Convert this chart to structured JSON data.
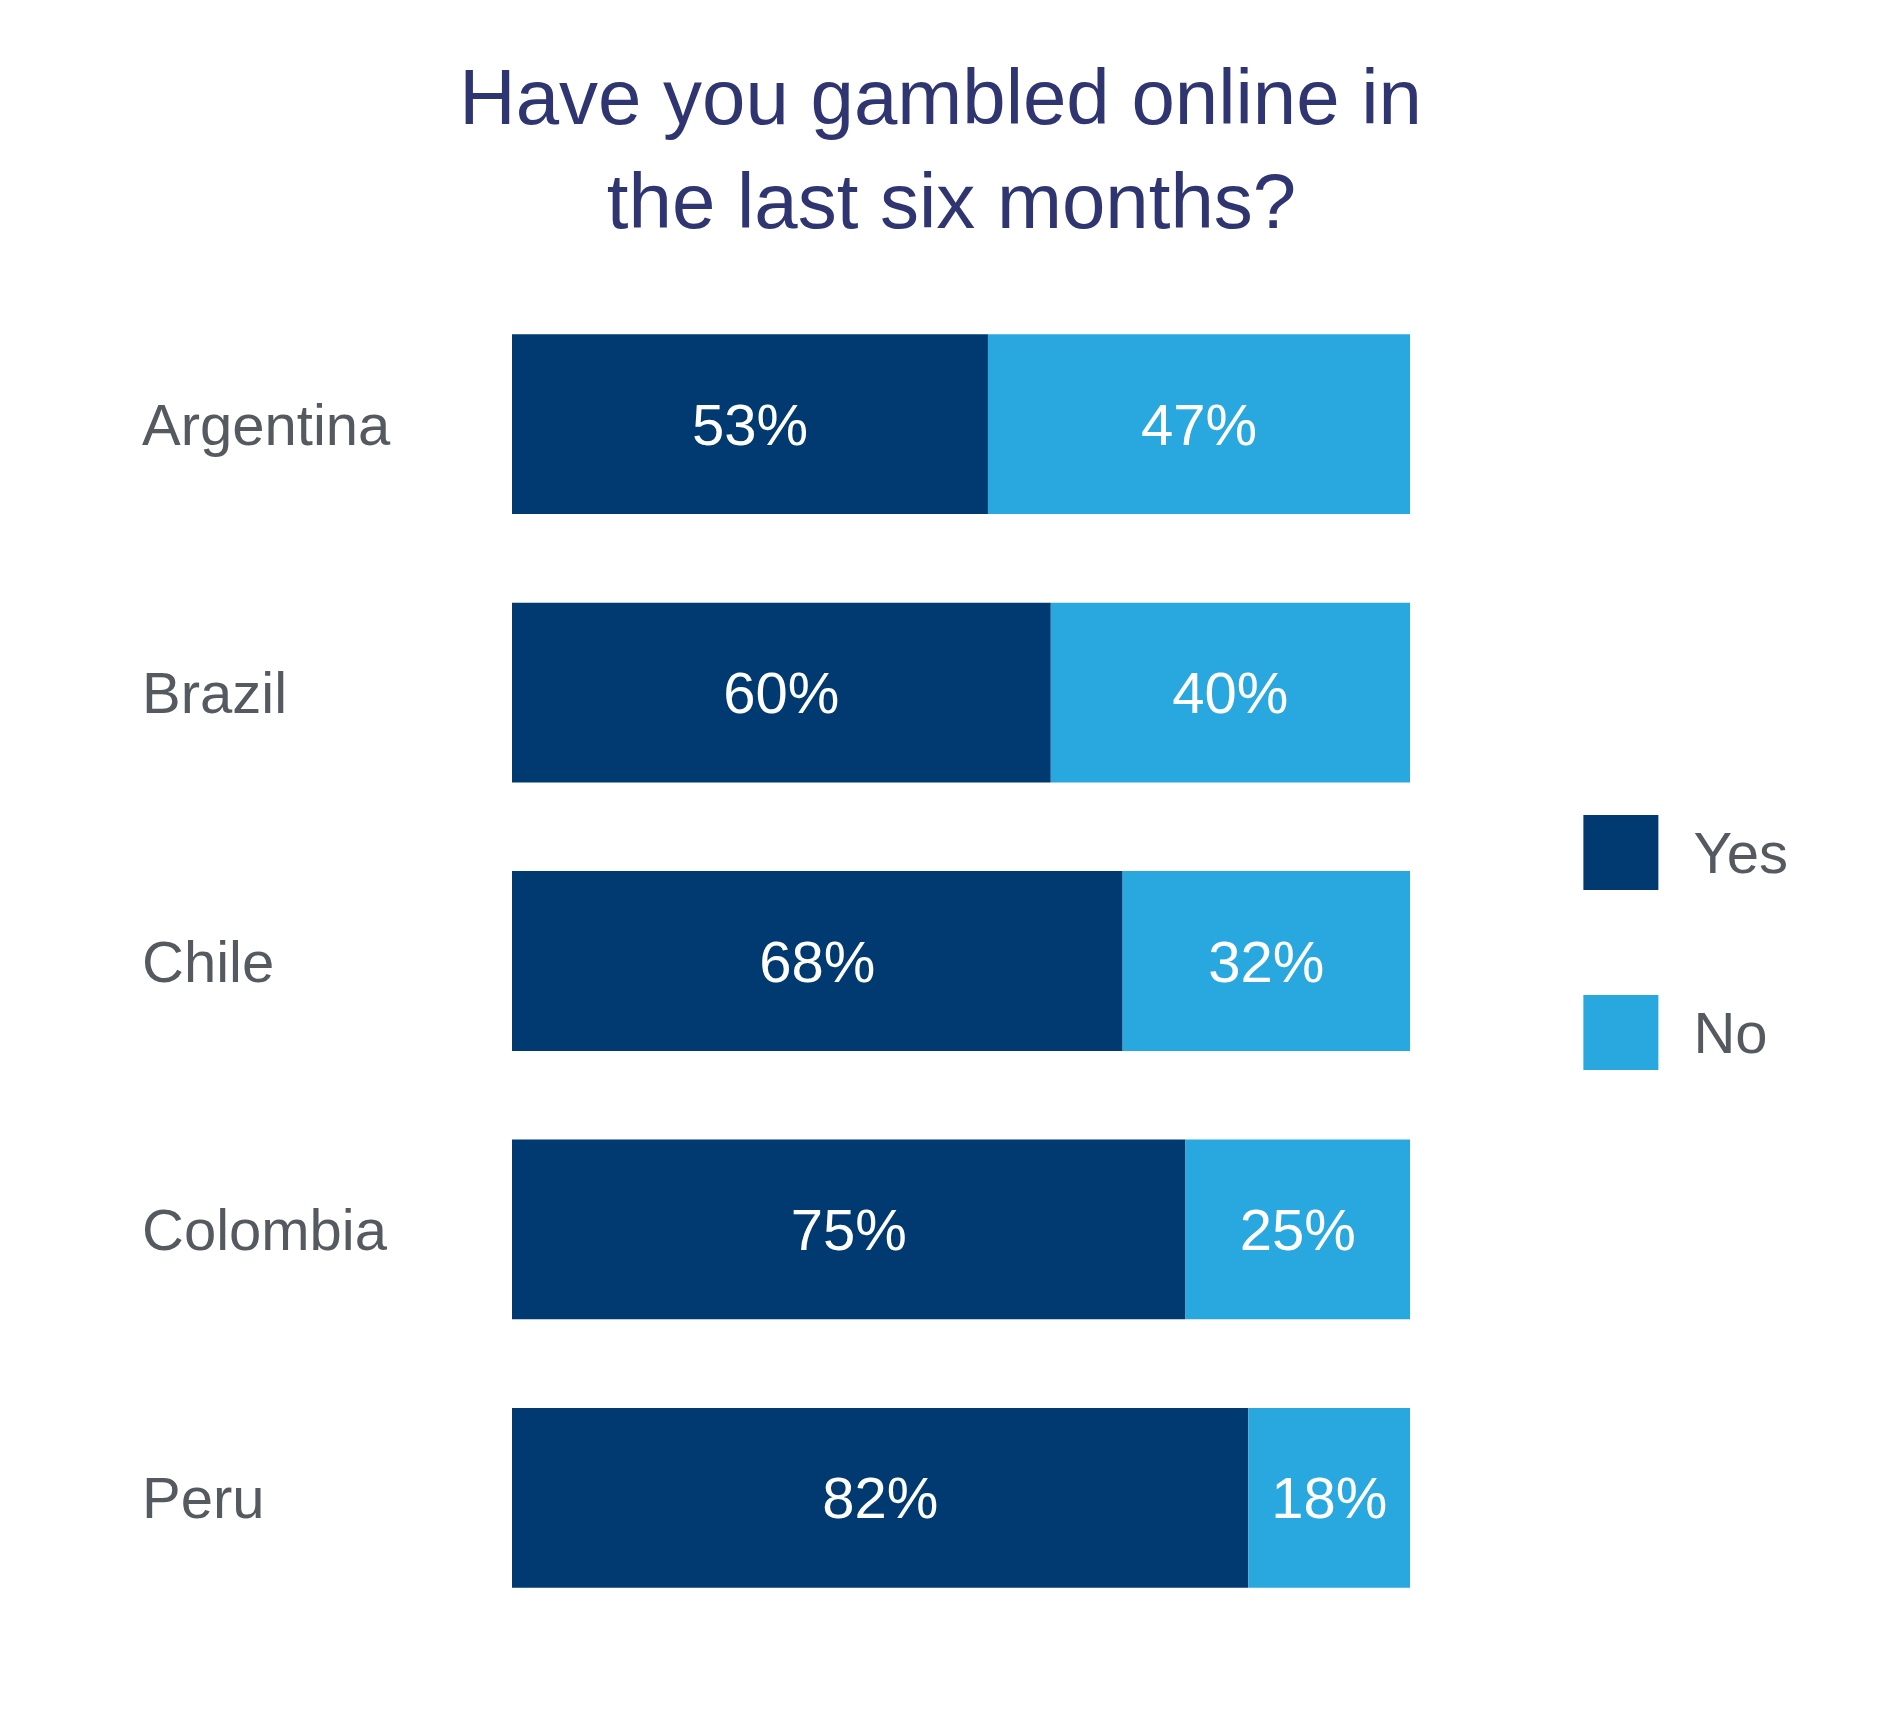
{
  "chart_data": {
    "type": "bar",
    "orientation": "horizontal",
    "stacked": true,
    "title": "Have you gambled online in the last six months?",
    "categories": [
      "Argentina",
      "Brazil",
      "Chile",
      "Colombia",
      "Peru"
    ],
    "series": [
      {
        "name": "Yes",
        "color": "#003a70",
        "values": [
          53,
          60,
          68,
          75,
          82
        ],
        "value_labels": [
          "53%",
          "60%",
          "68%",
          "75%",
          "82%"
        ]
      },
      {
        "name": "No",
        "color": "#29a8e0",
        "values": [
          47,
          40,
          32,
          25,
          18
        ],
        "value_labels": [
          "47%",
          "40%",
          "32%",
          "25%",
          "18%"
        ]
      }
    ],
    "xlim": [
      0,
      100
    ],
    "tick_labels": "y",
    "legend": "right"
  }
}
